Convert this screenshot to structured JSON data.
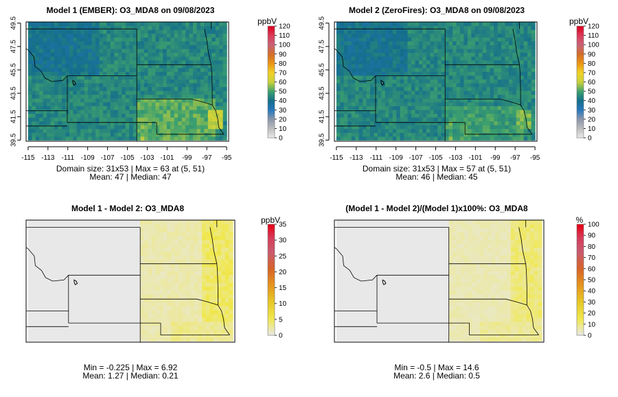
{
  "panels": [
    {
      "title": "Model 1 (EMBER): O3_MDA8 on 09/08/2023",
      "unit": "ppbV",
      "show_axes": true,
      "stats_line1": "Domain size: 31x53 | Max = 63 at (5, 51)",
      "stats_line2": "Mean: 47 |  Median: 47",
      "colorbar": {
        "ticks": [
          "0",
          "10",
          "20",
          "30",
          "40",
          "50",
          "60",
          "70",
          "80",
          "90",
          "100",
          "110",
          "120"
        ],
        "min": 0,
        "max": 120,
        "scheme": "conc"
      }
    },
    {
      "title": "Model 2 (ZeroFires): O3_MDA8 on 09/08/2023",
      "unit": "ppbV",
      "show_axes": true,
      "stats_line1": "Domain size: 31x53 | Max = 57 at (5, 51)",
      "stats_line2": "Mean: 46 |  Median: 45",
      "colorbar": {
        "ticks": [
          "0",
          "10",
          "20",
          "30",
          "40",
          "50",
          "60",
          "70",
          "80",
          "90",
          "100",
          "110",
          "120"
        ],
        "min": 0,
        "max": 120,
        "scheme": "conc"
      }
    },
    {
      "title": "Model 1 - Model 2: O3_MDA8",
      "unit": "ppbV",
      "show_axes": false,
      "stats_line1": "Min = -0.225 | Max = 6.92",
      "stats_line2": "Mean: 1.27 |  Median: 0.21",
      "colorbar": {
        "ticks": [
          "0",
          "5",
          "10",
          "15",
          "20",
          "25",
          "30",
          "35"
        ],
        "min": 0,
        "max": 35,
        "scheme": "diff"
      }
    },
    {
      "title": "(Model 1 - Model 2)/(Model 1)x100%: O3_MDA8",
      "unit": "%",
      "show_axes": false,
      "stats_line1": "Min = -0.5 | Max = 14.6",
      "stats_line2": "Mean: 2.6 |  Median: 0.5",
      "colorbar": {
        "ticks": [
          "0",
          "10",
          "20",
          "30",
          "40",
          "50",
          "60",
          "70",
          "80",
          "90",
          "100"
        ],
        "min": 0,
        "max": 100,
        "scheme": "diff"
      }
    }
  ],
  "axes": {
    "x_ticks": [
      "-115",
      "-113",
      "-111",
      "-109",
      "-107",
      "-105",
      "-103",
      "-101",
      "-99",
      "-97",
      "-95"
    ],
    "x_values": [
      -115,
      -113,
      -111,
      -109,
      -107,
      -105,
      -103,
      -101,
      -99,
      -97,
      -95
    ],
    "y_ticks": [
      "39.5",
      "41.5",
      "43.5",
      "45.5",
      "47.5",
      "49.5"
    ],
    "y_values": [
      39.5,
      41.5,
      43.5,
      45.5,
      47.5,
      49.5
    ],
    "xlim": [
      -115.2,
      -94.8
    ],
    "ylim": [
      39.4,
      49.6
    ]
  },
  "chart_data": [
    {
      "type": "heatmap",
      "title": "Model 1 (EMBER): O3_MDA8 on 09/08/2023",
      "legend_label": "ppbV",
      "grid": [
        31,
        53
      ],
      "value_range": [
        0,
        120
      ],
      "max": 63,
      "max_at": [
        5,
        51
      ],
      "mean": 47,
      "median": 47,
      "base_value": 45,
      "regions": [
        {
          "lon": [
            -115,
            -108
          ],
          "lat": [
            45,
            49.6
          ],
          "value": 40
        },
        {
          "lon": [
            -104,
            -96
          ],
          "lat": [
            39.5,
            43
          ],
          "value": 52
        },
        {
          "lon": [
            -97,
            -95.5
          ],
          "lat": [
            40.5,
            42
          ],
          "value": 60
        },
        {
          "lon": [
            -103.6,
            -103.2
          ],
          "lat": [
            39.5,
            41.5
          ],
          "value": 55
        }
      ]
    },
    {
      "type": "heatmap",
      "title": "Model 2 (ZeroFires): O3_MDA8 on 09/08/2023",
      "legend_label": "ppbV",
      "grid": [
        31,
        53
      ],
      "value_range": [
        0,
        120
      ],
      "max": 57,
      "max_at": [
        5,
        51
      ],
      "mean": 46,
      "median": 45,
      "base_value": 45,
      "regions": [
        {
          "lon": [
            -115,
            -108
          ],
          "lat": [
            45,
            49.6
          ],
          "value": 40
        },
        {
          "lon": [
            -104,
            -96
          ],
          "lat": [
            39.5,
            42.5
          ],
          "value": 49
        },
        {
          "lon": [
            -97,
            -95.5
          ],
          "lat": [
            40.5,
            42
          ],
          "value": 54
        },
        {
          "lon": [
            -103.6,
            -103.2
          ],
          "lat": [
            39.5,
            41.5
          ],
          "value": 53
        }
      ]
    },
    {
      "type": "heatmap",
      "title": "Model 1 - Model 2: O3_MDA8",
      "legend_label": "ppbV",
      "value_range": [
        0,
        35
      ],
      "min": -0.225,
      "max": 6.92,
      "mean": 1.27,
      "median": 0.21,
      "base_value": 0,
      "regions": [
        {
          "lon": [
            -104,
            -95
          ],
          "lat": [
            39.5,
            49.6
          ],
          "value": 2
        },
        {
          "lon": [
            -98,
            -95
          ],
          "lat": [
            39.5,
            49.6
          ],
          "value": 4.5
        },
        {
          "lon": [
            -101,
            -95
          ],
          "lat": [
            39.5,
            41
          ],
          "value": 3
        }
      ]
    },
    {
      "type": "heatmap",
      "title": "(Model 1 - Model 2)/(Model 1)x100%: O3_MDA8",
      "legend_label": "%",
      "value_range": [
        0,
        100
      ],
      "min": -0.5,
      "max": 14.6,
      "mean": 2.6,
      "median": 0.5,
      "base_value": 0,
      "regions": [
        {
          "lon": [
            -104,
            -95
          ],
          "lat": [
            39.5,
            49.6
          ],
          "value": 5
        },
        {
          "lon": [
            -98,
            -95
          ],
          "lat": [
            39.5,
            49.6
          ],
          "value": 11
        },
        {
          "lon": [
            -101,
            -95
          ],
          "lat": [
            39.5,
            41
          ],
          "value": 8
        }
      ]
    }
  ]
}
